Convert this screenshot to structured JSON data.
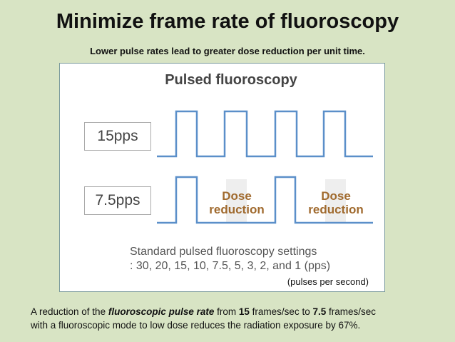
{
  "slide": {
    "title": "Minimize frame rate of fluoroscopy",
    "subtitle": "Lower pulse rates lead to greater dose reduction per unit time."
  },
  "figure": {
    "title": "Pulsed fluoroscopy",
    "label_15": "15pps",
    "label_75": "7.5pps",
    "dose_1": "Dose reduction",
    "dose_2": "Dose reduction",
    "settings_1": "Standard pulsed fluoroscopy settings",
    "settings_2": ": 30, 20, 15, 10, 7.5, 5, 3, 2, and 1 (pps)",
    "note": "(pulses per second)",
    "wave_color": "#5b8fc9"
  },
  "footer": {
    "p1": "A reduction of the ",
    "p2": "fluoroscopic pulse rate",
    "p3": " from ",
    "p4": "15",
    "p5": " frames/sec to ",
    "p6": "7.5",
    "p7": " frames/sec",
    "line2": "with a fluoroscopic mode to low dose reduces the radiation exposure by 67%."
  }
}
